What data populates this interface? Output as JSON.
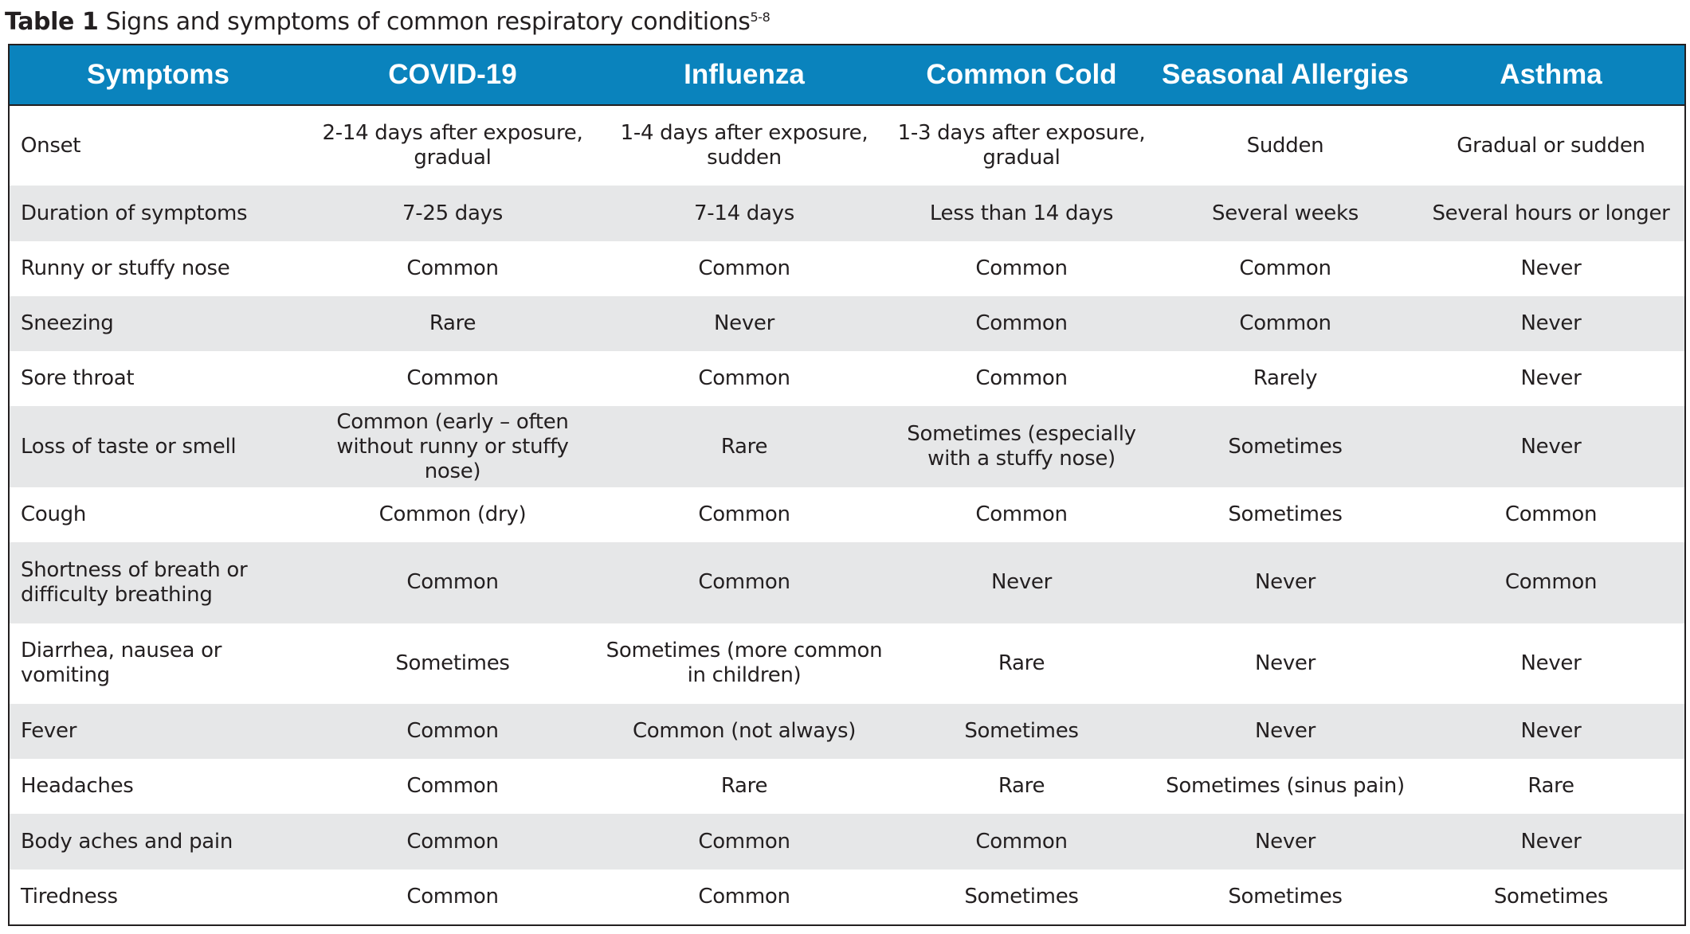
{
  "caption": {
    "label": "Table 1",
    "text": " Signs and symptoms of common respiratory conditions",
    "sup": "5-8"
  },
  "table": {
    "headers": [
      "Symptoms",
      "COVID-19",
      "Influenza",
      "Common Cold",
      "Seasonal Allergies",
      "Asthma"
    ],
    "rows": [
      [
        "Onset",
        "2-14 days after exposure, gradual",
        "1-4 days after exposure, sudden",
        "1-3 days after exposure, gradual",
        "Sudden",
        "Gradual or sudden"
      ],
      [
        "Duration of symptoms",
        "7-25 days",
        "7-14 days",
        "Less than 14 days",
        "Several weeks",
        "Several hours or longer"
      ],
      [
        "Runny or stuffy nose",
        "Common",
        "Common",
        "Common",
        "Common",
        "Never"
      ],
      [
        "Sneezing",
        "Rare",
        "Never",
        "Common",
        "Common",
        "Never"
      ],
      [
        "Sore throat",
        "Common",
        "Common",
        "Common",
        "Rarely",
        "Never"
      ],
      [
        "Loss of taste or smell",
        "Common (early – often without runny or stuffy nose)",
        "Rare",
        "Sometimes (especially with a stuffy nose)",
        "Sometimes",
        "Never"
      ],
      [
        "Cough",
        "Common (dry)",
        "Common",
        "Common",
        "Sometimes",
        "Common"
      ],
      [
        "Shortness of breath or difficulty breathing",
        "Common",
        "Common",
        "Never",
        "Never",
        "Common"
      ],
      [
        "Diarrhea, nausea or vomiting",
        "Sometimes",
        "Sometimes (more common in children)",
        "Rare",
        "Never",
        "Never"
      ],
      [
        "Fever",
        "Common",
        "Common (not always)",
        "Sometimes",
        "Never",
        "Never"
      ],
      [
        "Headaches",
        "Common",
        "Rare",
        "Rare",
        "Sometimes (sinus pain)",
        "Rare"
      ],
      [
        "Body aches and pain",
        "Common",
        "Common",
        "Common",
        "Never",
        "Never"
      ],
      [
        "Tiredness",
        "Common",
        "Common",
        "Sometimes",
        "Sometimes",
        "Sometimes"
      ]
    ]
  }
}
